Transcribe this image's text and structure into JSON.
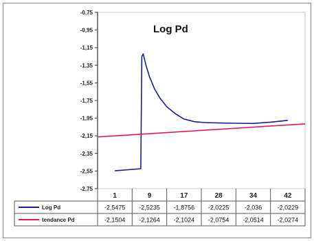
{
  "chart_data": {
    "type": "line",
    "title": "Log Pd",
    "xlabel": "",
    "ylabel": "",
    "ylim": [
      -2.75,
      -0.75
    ],
    "yticks": [
      "-0,75",
      "-0,95",
      "-1,15",
      "-1,35",
      "-1,55",
      "-1,75",
      "-1,95",
      "-2,15",
      "-2,35",
      "-2,55",
      "-2,75"
    ],
    "categories": [
      "1",
      "9",
      "17",
      "28",
      "34",
      "42"
    ],
    "series": [
      {
        "name": "Log Pd",
        "color": "#1c1c8c",
        "values": [
          -2.5475,
          -2.5235,
          -1.8756,
          -2.0225,
          -2.036,
          -2.0229
        ],
        "value_labels": [
          "-2,5475",
          "-2,5235",
          "-1,8756",
          "-2,0225",
          "-2,036",
          "-2,0229"
        ],
        "curve_points": [
          [
            0.0,
            -2.5475
          ],
          [
            0.75,
            -2.5235
          ],
          [
            0.78,
            -1.25
          ],
          [
            0.82,
            -1.22
          ],
          [
            0.9,
            -1.35
          ],
          [
            1.0,
            -1.48
          ],
          [
            1.15,
            -1.62
          ],
          [
            1.3,
            -1.72
          ],
          [
            1.5,
            -1.82
          ],
          [
            1.75,
            -1.9
          ],
          [
            2.0,
            -1.96
          ],
          [
            2.3,
            -1.99
          ],
          [
            2.6,
            -2.0
          ],
          [
            3.0,
            -2.005
          ],
          [
            3.5,
            -2.008
          ],
          [
            4.0,
            -2.01
          ],
          [
            4.5,
            -1.995
          ],
          [
            5.0,
            -1.975
          ]
        ]
      },
      {
        "name": "tendance Pd",
        "color": "#e01a5a",
        "values": [
          -2.1504,
          -2.1264,
          -2.1024,
          -2.0754,
          -2.0514,
          -2.0274
        ],
        "value_labels": [
          "-2,1504",
          "-2,1264",
          "-2,1024",
          "-2,0754",
          "-2,0514",
          "-2,0274"
        ]
      }
    ],
    "legend_position": "bottom table"
  }
}
